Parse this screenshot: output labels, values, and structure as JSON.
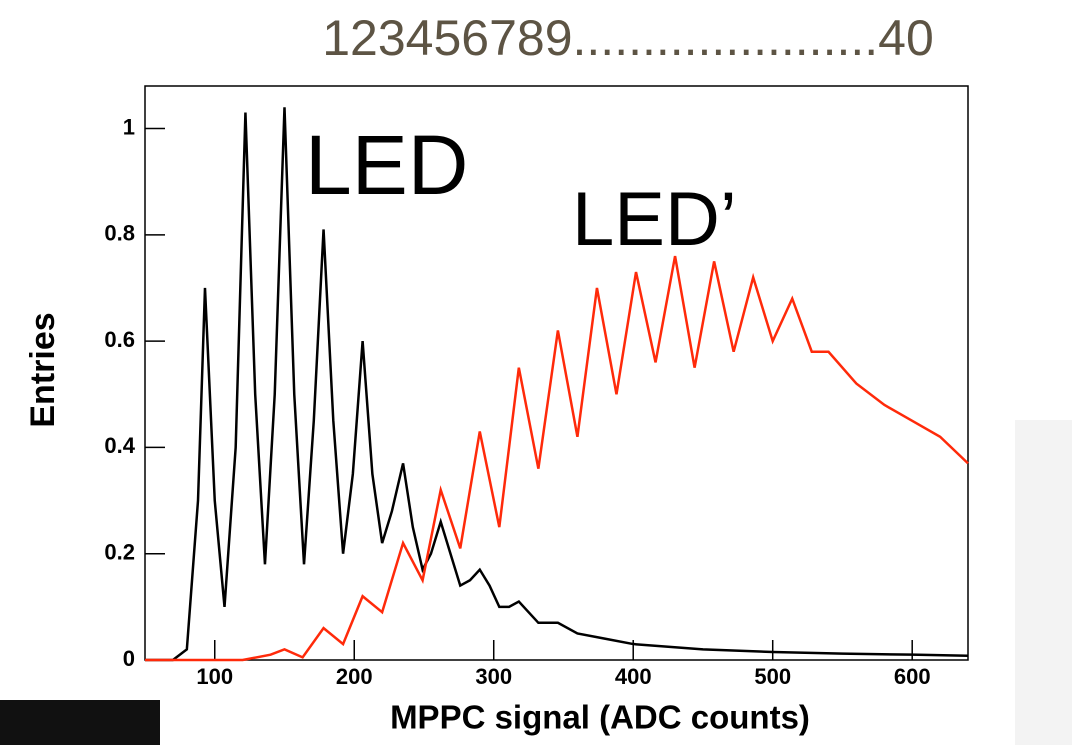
{
  "chart_data": {
    "type": "line",
    "title": "123456789......................40",
    "x_label": "MPPC signal (ADC counts)",
    "y_label": "Entries",
    "xlim": [
      50,
      640
    ],
    "ylim": [
      0,
      1.08
    ],
    "xticks": [
      100,
      200,
      300,
      400,
      500,
      600
    ],
    "yticks": [
      0,
      0.2,
      0.4,
      0.6,
      0.8,
      1
    ],
    "series": [
      {
        "name": "LED",
        "color": "#000000",
        "x": [
          50,
          70,
          80,
          88,
          93,
          100,
          107,
          115,
          122,
          129,
          136,
          143,
          150,
          157,
          164,
          171,
          178,
          185,
          192,
          199,
          206,
          213,
          220,
          227,
          235,
          242,
          249,
          255,
          262,
          269,
          276,
          283,
          290,
          297,
          304,
          311,
          318,
          325,
          332,
          346,
          360,
          380,
          400,
          450,
          500,
          550,
          600,
          640
        ],
        "values": [
          0,
          0,
          0.02,
          0.3,
          0.7,
          0.3,
          0.1,
          0.4,
          1.03,
          0.5,
          0.18,
          0.5,
          1.04,
          0.5,
          0.18,
          0.45,
          0.81,
          0.45,
          0.2,
          0.35,
          0.6,
          0.35,
          0.22,
          0.28,
          0.37,
          0.25,
          0.17,
          0.2,
          0.26,
          0.2,
          0.14,
          0.15,
          0.17,
          0.14,
          0.1,
          0.1,
          0.11,
          0.09,
          0.07,
          0.07,
          0.05,
          0.04,
          0.03,
          0.02,
          0.015,
          0.012,
          0.01,
          0.008
        ]
      },
      {
        "name": "LED’",
        "color": "#ff2a0a",
        "x": [
          50,
          120,
          140,
          150,
          163,
          178,
          192,
          206,
          220,
          235,
          249,
          262,
          276,
          290,
          304,
          318,
          332,
          346,
          360,
          374,
          388,
          402,
          416,
          430,
          444,
          458,
          472,
          486,
          500,
          514,
          528,
          540,
          560,
          580,
          600,
          620,
          640
        ],
        "values": [
          0,
          0,
          0.01,
          0.02,
          0.005,
          0.06,
          0.03,
          0.12,
          0.09,
          0.22,
          0.15,
          0.32,
          0.21,
          0.43,
          0.25,
          0.55,
          0.36,
          0.62,
          0.42,
          0.7,
          0.5,
          0.73,
          0.56,
          0.76,
          0.55,
          0.75,
          0.58,
          0.72,
          0.6,
          0.68,
          0.58,
          0.58,
          0.52,
          0.48,
          0.45,
          0.42,
          0.37
        ]
      }
    ]
  }
}
